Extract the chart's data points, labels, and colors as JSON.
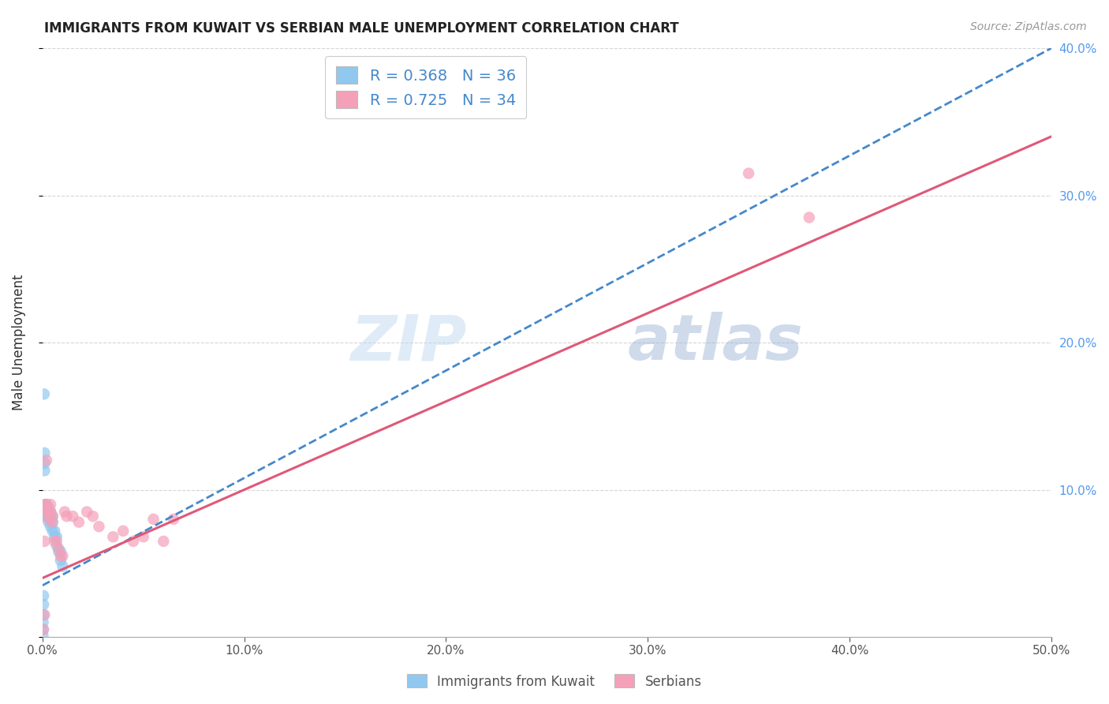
{
  "title": "IMMIGRANTS FROM KUWAIT VS SERBIAN MALE UNEMPLOYMENT CORRELATION CHART",
  "source": "Source: ZipAtlas.com",
  "ylabel": "Male Unemployment",
  "legend_bottom": [
    "Immigrants from Kuwait",
    "Serbians"
  ],
  "xlim": [
    0.0,
    0.5
  ],
  "ylim": [
    0.0,
    0.4
  ],
  "xticks": [
    0.0,
    0.1,
    0.2,
    0.3,
    0.4,
    0.5
  ],
  "yticks": [
    0.0,
    0.1,
    0.2,
    0.3,
    0.4
  ],
  "R_kuwait": 0.368,
  "N_kuwait": 36,
  "R_serbian": 0.725,
  "N_serbian": 34,
  "color_kuwait": "#90C8F0",
  "color_serbian": "#F4A0B8",
  "color_kuwait_line": "#4488CC",
  "color_serbian_line": "#E05878",
  "watermark_zip": "ZIP",
  "watermark_atlas": "atlas",
  "kuwait_x": [
    0.0008,
    0.001,
    0.001,
    0.001,
    0.0012,
    0.0013,
    0.0015,
    0.0015,
    0.002,
    0.002,
    0.0022,
    0.0025,
    0.003,
    0.003,
    0.003,
    0.003,
    0.004,
    0.004,
    0.004,
    0.005,
    0.005,
    0.005,
    0.006,
    0.006,
    0.007,
    0.007,
    0.008,
    0.009,
    0.009,
    0.01,
    0.0005,
    0.0005,
    0.0004,
    0.0003,
    0.0003,
    0.0002
  ],
  "kuwait_y": [
    0.165,
    0.125,
    0.118,
    0.113,
    0.09,
    0.087,
    0.088,
    0.082,
    0.09,
    0.085,
    0.083,
    0.082,
    0.088,
    0.085,
    0.082,
    0.078,
    0.085,
    0.08,
    0.075,
    0.082,
    0.078,
    0.072,
    0.072,
    0.068,
    0.068,
    0.062,
    0.058,
    0.058,
    0.052,
    0.048,
    0.028,
    0.022,
    0.015,
    0.01,
    0.005,
    0.001
  ],
  "serbian_x": [
    0.0005,
    0.001,
    0.0015,
    0.002,
    0.002,
    0.003,
    0.003,
    0.004,
    0.004,
    0.005,
    0.005,
    0.006,
    0.007,
    0.008,
    0.009,
    0.01,
    0.011,
    0.012,
    0.015,
    0.018,
    0.022,
    0.025,
    0.028,
    0.035,
    0.04,
    0.045,
    0.05,
    0.055,
    0.06,
    0.065,
    0.35,
    0.38,
    0.002,
    0.001
  ],
  "serbian_y": [
    0.005,
    0.065,
    0.09,
    0.09,
    0.085,
    0.085,
    0.08,
    0.09,
    0.085,
    0.082,
    0.078,
    0.065,
    0.065,
    0.06,
    0.055,
    0.055,
    0.085,
    0.082,
    0.082,
    0.078,
    0.085,
    0.082,
    0.075,
    0.068,
    0.072,
    0.065,
    0.068,
    0.08,
    0.065,
    0.08,
    0.315,
    0.285,
    0.12,
    0.015
  ],
  "kuwait_line_x": [
    0.0,
    0.5
  ],
  "kuwait_line_y": [
    0.035,
    0.4
  ],
  "serbian_line_x": [
    0.0,
    0.5
  ],
  "serbian_line_y": [
    0.04,
    0.34
  ]
}
